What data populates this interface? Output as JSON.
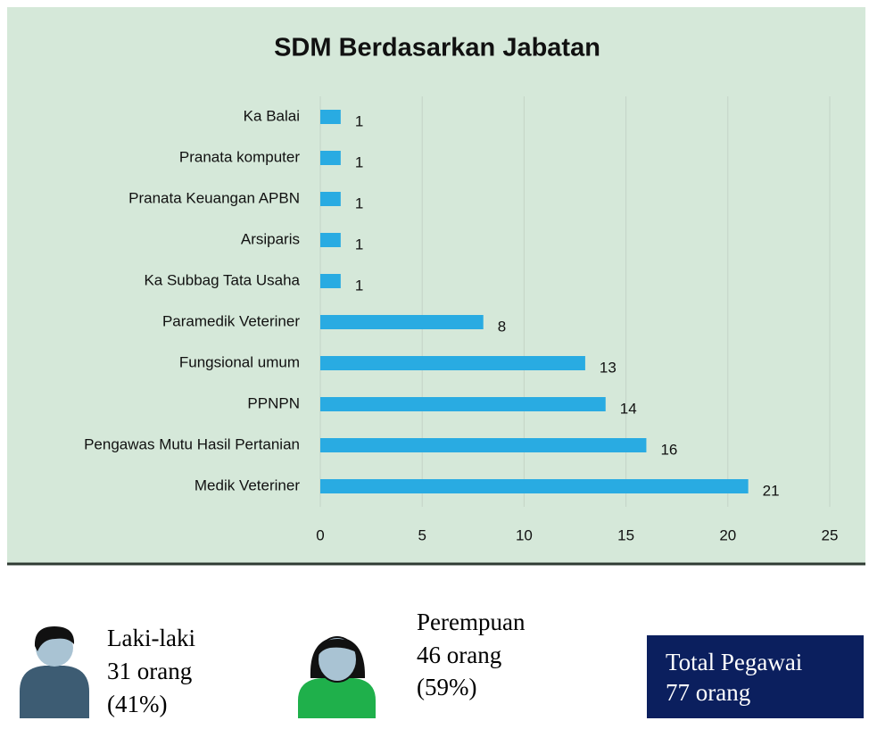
{
  "chart_data": {
    "type": "bar",
    "orientation": "horizontal",
    "title": "SDM Berdasarkan Jabatan",
    "categories": [
      "Ka Balai",
      "Pranata komputer",
      "Pranata Keuangan APBN",
      "Arsiparis",
      "Ka Subbag Tata Usaha",
      "Paramedik Veteriner",
      "Fungsional umum",
      "PPNPN",
      "Pengawas Mutu Hasil Pertanian",
      "Medik Veteriner"
    ],
    "values": [
      1,
      1,
      1,
      1,
      1,
      8,
      13,
      14,
      16,
      21
    ],
    "color": "#29abe2",
    "xlim": [
      0,
      25
    ],
    "xticks": [
      0,
      5,
      10,
      15,
      20,
      25
    ],
    "grid": true
  },
  "summary": {
    "male": {
      "label": "Laki-laki",
      "count": "31 orang",
      "percent": "(41%)"
    },
    "female": {
      "label": "Perempuan",
      "count": "46 orang",
      "percent": "(59%)"
    },
    "total": {
      "label": "Total Pegawai",
      "count": "77 orang"
    }
  }
}
